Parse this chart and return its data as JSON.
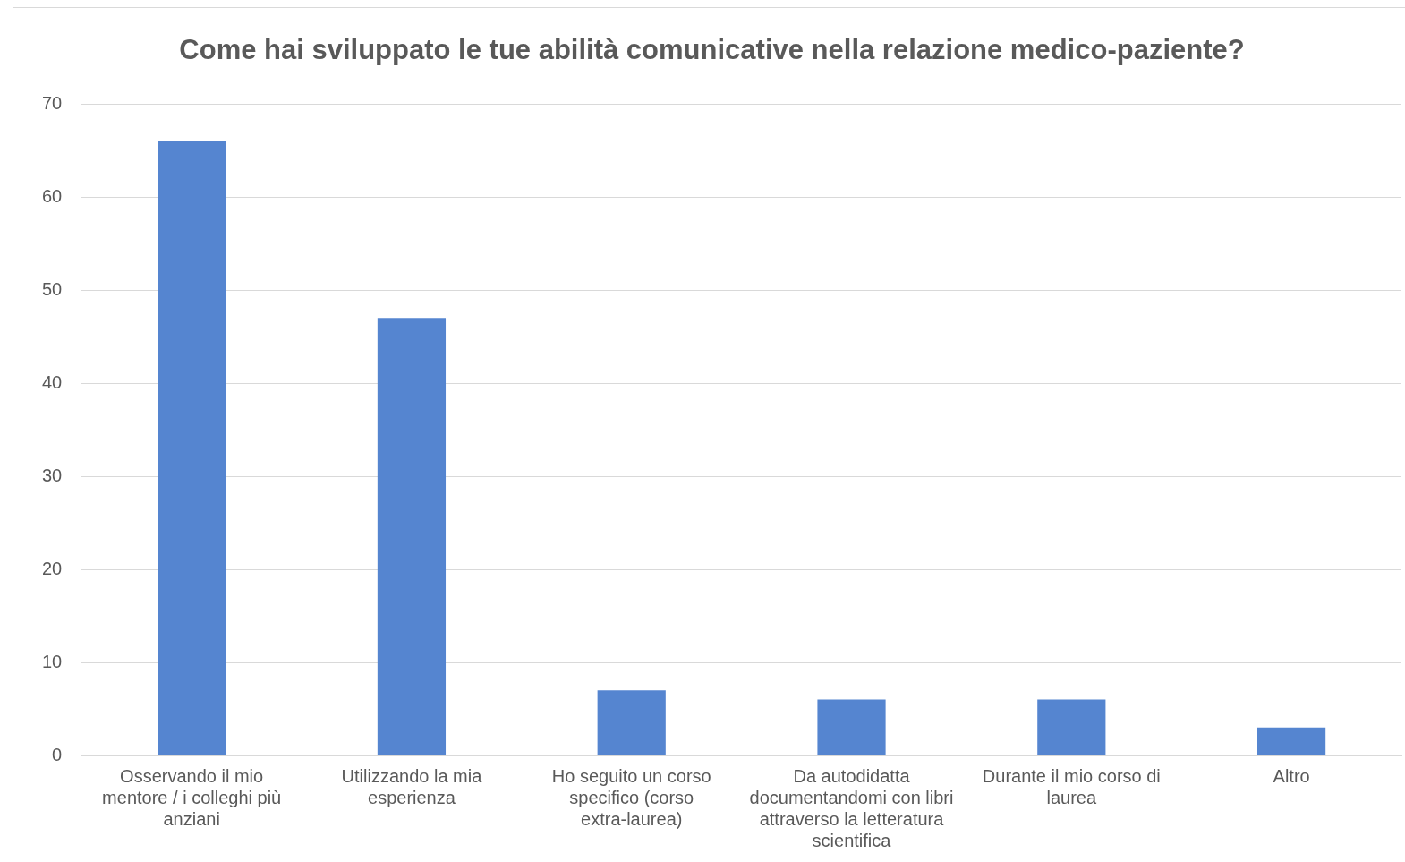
{
  "chart_data": {
    "type": "bar",
    "title": "Come hai sviluppato le tue abilità comunicative nella relazione medico-paziente?",
    "categories": [
      "Osservando il mio mentore / i colleghi più anziani",
      "Utilizzando la mia esperienza",
      "Ho seguito un corso specifico (corso extra-laurea)",
      "Da autodidatta documentandomi con libri attraverso la letteratura scientifica",
      "Durante il mio corso di laurea",
      "Altro"
    ],
    "values": [
      66,
      47,
      7,
      6,
      6,
      3
    ],
    "color": "#5585d0",
    "ylim": [
      0,
      70
    ],
    "yticks": [
      0,
      10,
      20,
      30,
      40,
      50,
      60,
      70
    ],
    "grid": "y",
    "legend": false
  }
}
